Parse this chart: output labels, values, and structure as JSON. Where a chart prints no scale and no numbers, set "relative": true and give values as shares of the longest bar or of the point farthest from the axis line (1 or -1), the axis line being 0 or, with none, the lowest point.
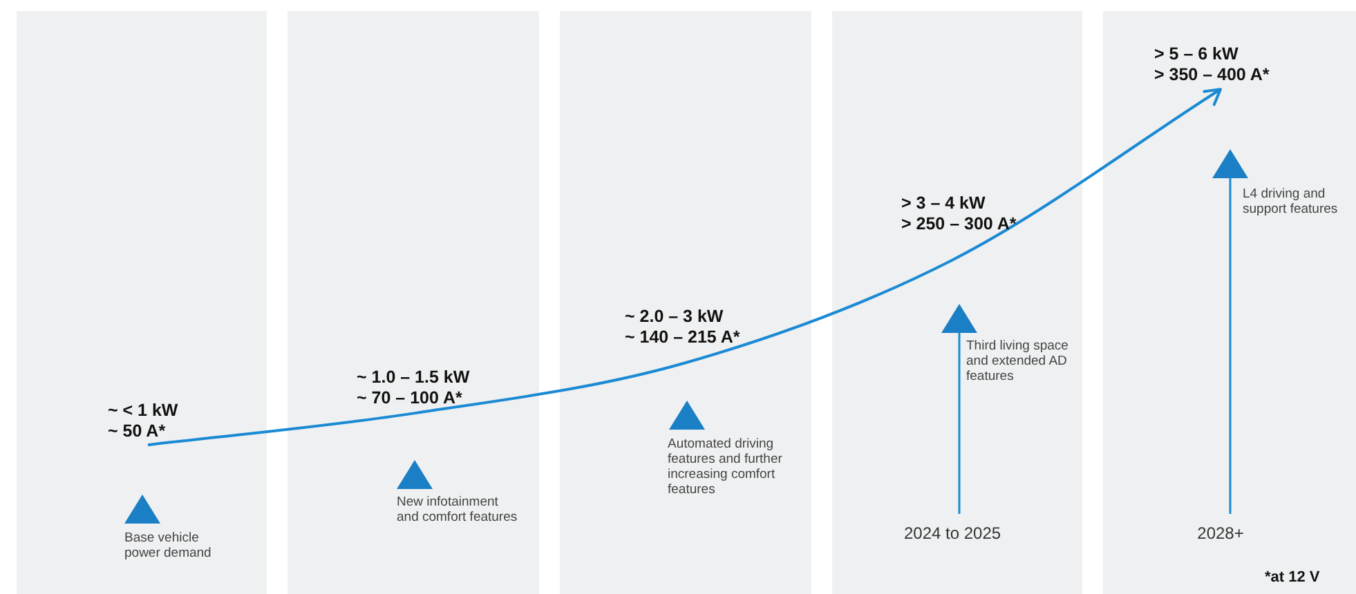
{
  "chart_data": {
    "type": "line",
    "relative": true,
    "categories": [
      null,
      null,
      null,
      "2024 to 2025",
      "2028+"
    ],
    "series": [
      {
        "color": "#1a8ad4",
        "values": [
          0,
          0.09,
          0.23,
          0.52,
          1
        ]
      }
    ],
    "marker": "none",
    "legend": false,
    "tick_labels": "x",
    "annotations": [
      "~ < 1 kW\n~ 50 A*",
      "~ 1.0 – 1.5 kW\n~ 70 – 100 A*",
      "~ 2.0 – 3 kW\n~ 140 – 215 A*",
      "> 3 – 4 kW\n> 250 – 300 A*",
      "> 5 – 6 kW\n> 350 – 400 A*",
      "Base vehicle\npower demand",
      "New infotainment\nand comfort features",
      "Automated driving\nfeatures and further\nincreasing comfort\nfeatures",
      "Third living space\nand extended AD\nfeatures",
      "L4 driving and\nsupport features",
      "*at 12 V"
    ]
  }
}
